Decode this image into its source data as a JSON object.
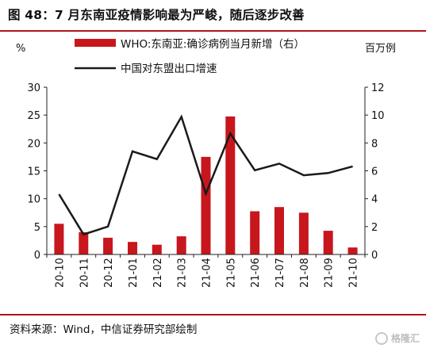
{
  "figure": {
    "title": "图 48：7 月东南亚疫情影响最为严峻，随后逐步改善",
    "source": "资料来源：Wind，中信证券研究部绘制",
    "watermark": "格隆汇"
  },
  "colors": {
    "rule": "#b3141b",
    "bar": "#c8161d",
    "line": "#1a1a1a"
  },
  "chart_data": {
    "type": "bar+line",
    "categories": [
      "20-10",
      "20-11",
      "20-12",
      "21-01",
      "21-02",
      "21-03",
      "21-04",
      "21-05",
      "21-06",
      "21-07",
      "21-08",
      "21-09",
      "21-10"
    ],
    "left_axis": {
      "unit": "%",
      "ylim": [
        0,
        30
      ],
      "ticks": [
        0,
        5,
        10,
        15,
        20,
        25,
        30
      ]
    },
    "right_axis": {
      "unit": "百万例",
      "ylim": [
        0,
        12
      ],
      "ticks": [
        0,
        2,
        4,
        6,
        8,
        10,
        12
      ]
    },
    "series": [
      {
        "name": "WHO:东南亚:确诊病例当月新增（右）",
        "type": "bar",
        "axis": "right",
        "values": [
          2.2,
          1.6,
          1.2,
          0.9,
          0.7,
          1.3,
          7.0,
          9.9,
          3.1,
          3.4,
          3.0,
          1.7,
          0.5
        ]
      },
      {
        "name": "中国对东盟出口增速",
        "type": "line",
        "axis": "left",
        "values": [
          10.8,
          3.6,
          5.0,
          18.5,
          17.1,
          24.7,
          10.9,
          21.7,
          15.1,
          16.3,
          14.2,
          14.6,
          15.8
        ]
      }
    ],
    "grid": false,
    "legend_position": "top"
  }
}
